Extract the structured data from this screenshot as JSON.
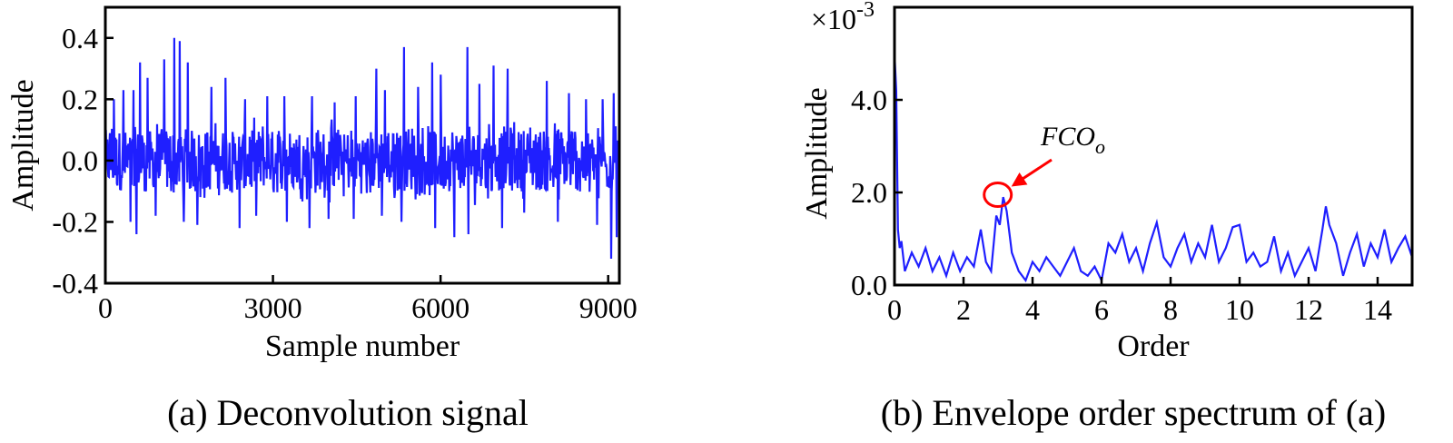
{
  "chart_data": [
    {
      "type": "line",
      "caption": "(a) Deconvolution signal",
      "xlabel": "Sample number",
      "ylabel": "Amplitude",
      "xlim": [
        0,
        9200
      ],
      "ylim": [
        -0.4,
        0.5
      ],
      "x_ticks": [
        0,
        3000,
        6000,
        9000
      ],
      "x_tick_labels": [
        "0",
        "3000",
        "6000",
        "9000"
      ],
      "y_ticks": [
        -0.4,
        -0.2,
        0.0,
        0.2,
        0.4
      ],
      "y_tick_labels": [
        "-0.4",
        "-0.2",
        "0.0",
        "0.2",
        "0.4"
      ],
      "line_color": "#1f1fff",
      "grid": false,
      "signal": {
        "n_samples": 9200,
        "baseline_range": [
          -0.15,
          0.15
        ],
        "peaks": [
          {
            "x": 150,
            "y": 0.2
          },
          {
            "x": 320,
            "y": 0.23
          },
          {
            "x": 500,
            "y": 0.23
          },
          {
            "x": 620,
            "y": 0.32
          },
          {
            "x": 760,
            "y": 0.27
          },
          {
            "x": 900,
            "y": 0.27
          },
          {
            "x": 1050,
            "y": 0.33
          },
          {
            "x": 1230,
            "y": 0.4
          },
          {
            "x": 1330,
            "y": 0.39
          },
          {
            "x": 1480,
            "y": 0.32
          },
          {
            "x": 1650,
            "y": 0.27
          },
          {
            "x": 1900,
            "y": 0.24
          },
          {
            "x": 2150,
            "y": 0.27
          },
          {
            "x": 2500,
            "y": 0.2
          },
          {
            "x": 2900,
            "y": 0.21
          },
          {
            "x": 3200,
            "y": 0.21
          },
          {
            "x": 3700,
            "y": 0.21
          },
          {
            "x": 4100,
            "y": 0.19
          },
          {
            "x": 4480,
            "y": 0.21
          },
          {
            "x": 4850,
            "y": 0.3
          },
          {
            "x": 5000,
            "y": 0.23
          },
          {
            "x": 5350,
            "y": 0.37
          },
          {
            "x": 5600,
            "y": 0.24
          },
          {
            "x": 5850,
            "y": 0.32
          },
          {
            "x": 6000,
            "y": 0.28
          },
          {
            "x": 6250,
            "y": 0.32
          },
          {
            "x": 6480,
            "y": 0.37
          },
          {
            "x": 6700,
            "y": 0.25
          },
          {
            "x": 6950,
            "y": 0.31
          },
          {
            "x": 7200,
            "y": 0.3
          },
          {
            "x": 7500,
            "y": 0.29
          },
          {
            "x": 7900,
            "y": 0.26
          },
          {
            "x": 8300,
            "y": 0.22
          },
          {
            "x": 8600,
            "y": 0.2
          },
          {
            "x": 8900,
            "y": 0.2
          },
          {
            "x": 9100,
            "y": 0.22
          }
        ],
        "troughs": [
          {
            "x": 450,
            "y": -0.2
          },
          {
            "x": 560,
            "y": -0.24
          },
          {
            "x": 900,
            "y": -0.18
          },
          {
            "x": 1400,
            "y": -0.2
          },
          {
            "x": 1650,
            "y": -0.21
          },
          {
            "x": 2400,
            "y": -0.22
          },
          {
            "x": 2700,
            "y": -0.18
          },
          {
            "x": 3250,
            "y": -0.2
          },
          {
            "x": 3650,
            "y": -0.22
          },
          {
            "x": 4000,
            "y": -0.19
          },
          {
            "x": 4450,
            "y": -0.19
          },
          {
            "x": 4950,
            "y": -0.18
          },
          {
            "x": 5300,
            "y": -0.2
          },
          {
            "x": 5900,
            "y": -0.22
          },
          {
            "x": 6250,
            "y": -0.25
          },
          {
            "x": 6500,
            "y": -0.24
          },
          {
            "x": 7100,
            "y": -0.22
          },
          {
            "x": 7500,
            "y": -0.17
          },
          {
            "x": 8100,
            "y": -0.2
          },
          {
            "x": 8800,
            "y": -0.21
          },
          {
            "x": 9050,
            "y": -0.32
          },
          {
            "x": 9150,
            "y": -0.25
          }
        ]
      }
    },
    {
      "type": "line",
      "caption": "(b) Envelope order spectrum of (a)",
      "xlabel": "Order",
      "ylabel": "Amplitude",
      "y_multiplier_base": "×10",
      "y_multiplier_exp": "-3",
      "xlim": [
        0,
        15
      ],
      "ylim": [
        0,
        6
      ],
      "x_ticks": [
        0,
        2,
        4,
        6,
        8,
        10,
        12,
        14
      ],
      "x_tick_labels": [
        "0",
        "2",
        "4",
        "6",
        "8",
        "10",
        "12",
        "14"
      ],
      "y_ticks": [
        0,
        2,
        4
      ],
      "y_tick_labels": [
        "0.0",
        "2.0",
        "4.0"
      ],
      "line_color": "#1f1fff",
      "grid": false,
      "series": {
        "x": [
          0,
          0.05,
          0.1,
          0.15,
          0.2,
          0.3,
          0.5,
          0.7,
          0.9,
          1.1,
          1.3,
          1.5,
          1.7,
          1.9,
          2.1,
          2.3,
          2.5,
          2.65,
          2.8,
          2.95,
          3.05,
          3.15,
          3.25,
          3.4,
          3.6,
          3.8,
          4.0,
          4.2,
          4.4,
          4.6,
          4.8,
          5.0,
          5.2,
          5.4,
          5.6,
          5.8,
          6.0,
          6.2,
          6.4,
          6.6,
          6.8,
          7.0,
          7.2,
          7.4,
          7.6,
          7.8,
          8.0,
          8.2,
          8.4,
          8.6,
          8.8,
          9.0,
          9.2,
          9.4,
          9.6,
          9.8,
          10.0,
          10.2,
          10.4,
          10.6,
          10.8,
          11.0,
          11.2,
          11.4,
          11.6,
          11.8,
          12.0,
          12.2,
          12.4,
          12.5,
          12.6,
          12.8,
          13.0,
          13.2,
          13.4,
          13.6,
          13.8,
          14.0,
          14.2,
          14.4,
          14.6,
          14.8,
          15.0
        ],
        "y": [
          5.0,
          4.2,
          1.2,
          0.8,
          0.95,
          0.3,
          0.7,
          0.4,
          0.8,
          0.3,
          0.6,
          0.2,
          0.7,
          0.3,
          0.6,
          0.4,
          1.2,
          0.5,
          0.3,
          1.5,
          1.3,
          1.9,
          1.6,
          0.7,
          0.3,
          0.1,
          0.5,
          0.3,
          0.6,
          0.4,
          0.2,
          0.5,
          0.8,
          0.3,
          0.2,
          0.4,
          0.1,
          0.9,
          0.7,
          1.1,
          0.5,
          0.8,
          0.3,
          0.9,
          1.35,
          0.6,
          0.4,
          0.8,
          1.1,
          0.5,
          0.9,
          0.6,
          1.3,
          0.5,
          0.8,
          1.25,
          1.3,
          0.5,
          0.7,
          0.4,
          0.5,
          1.05,
          0.3,
          0.7,
          0.2,
          0.5,
          0.8,
          0.3,
          1.2,
          1.7,
          1.3,
          0.9,
          0.2,
          0.7,
          1.1,
          0.4,
          0.9,
          0.6,
          1.2,
          0.5,
          0.8,
          1.05,
          0.6
        ]
      },
      "annotation": {
        "label_main": "FCO",
        "label_sub": "o",
        "x": 3.15,
        "y": 1.95,
        "color": "#ff0000"
      }
    }
  ]
}
